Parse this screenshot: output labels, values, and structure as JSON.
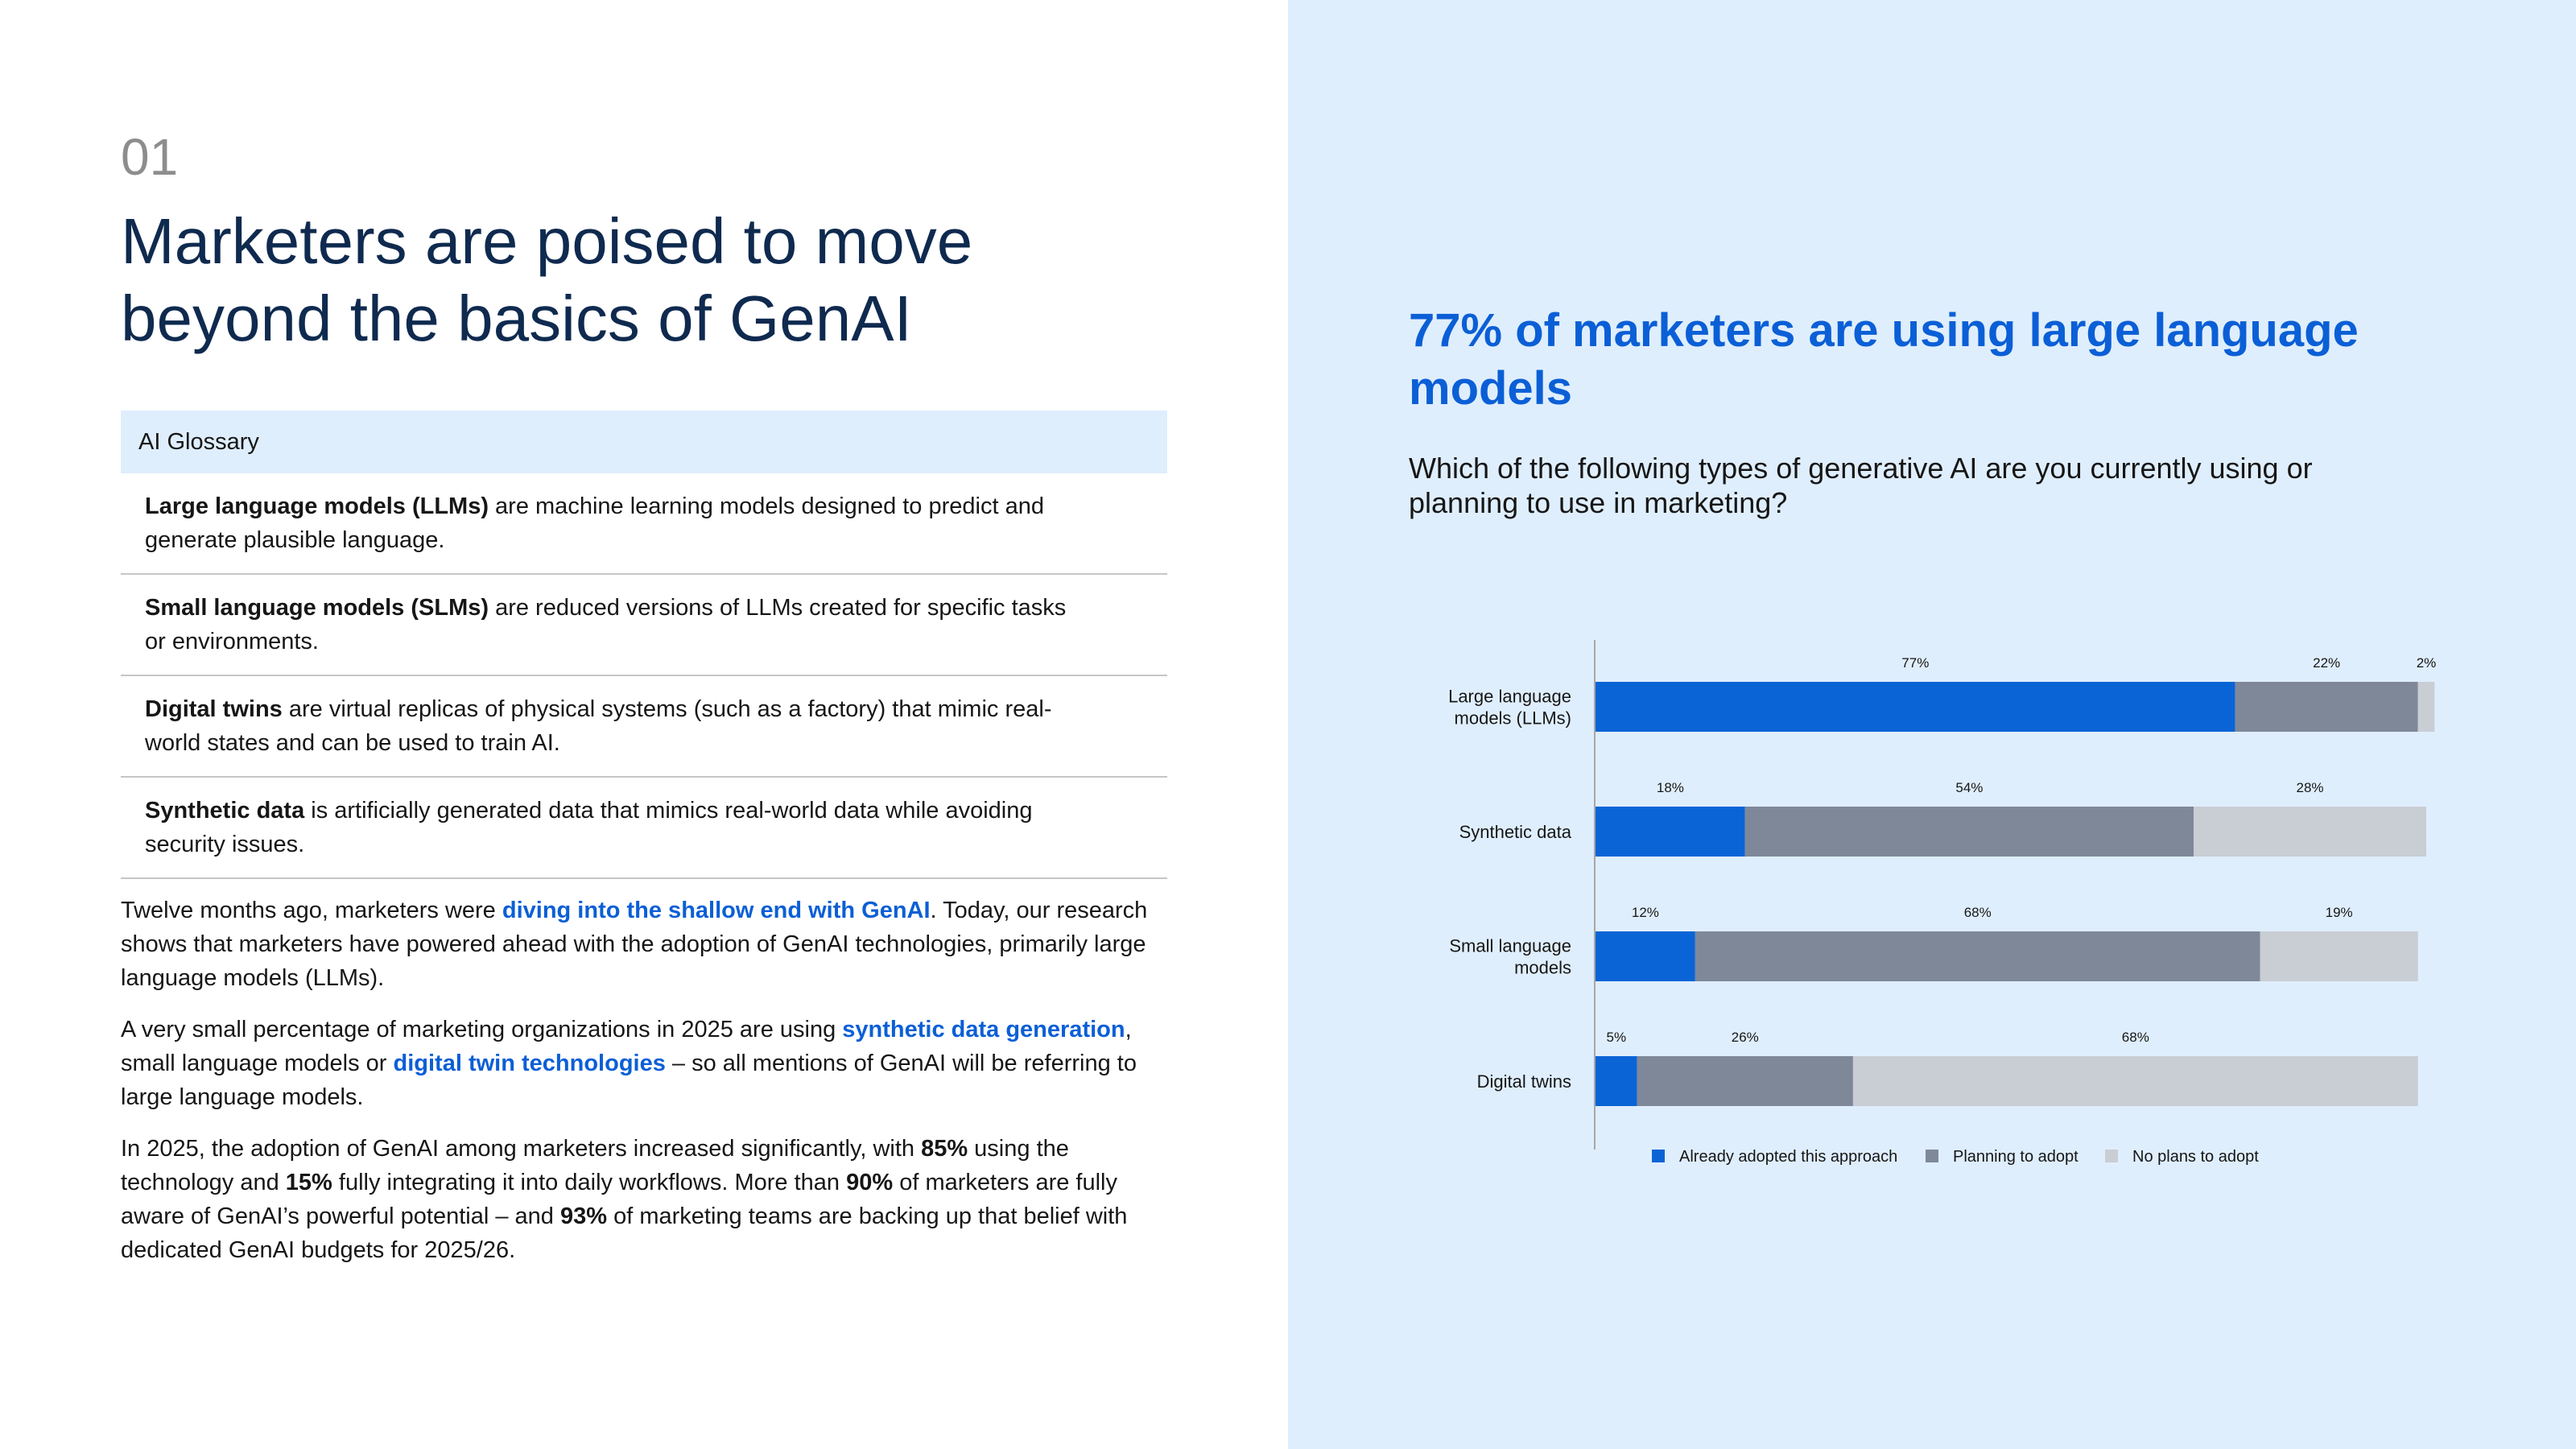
{
  "left": {
    "section_number": "01",
    "title": "Marketers are poised to move beyond the basics of GenAI",
    "glossary": {
      "heading": "AI Glossary",
      "items": [
        {
          "term": "Large language models (LLMs)",
          "definition": " are machine learning models designed to predict and generate plausible language."
        },
        {
          "term": "Small language models (SLMs)",
          "definition": " are reduced versions of LLMs created for specific tasks or environments."
        },
        {
          "term": "Digital twins",
          "definition": " are virtual replicas of physical systems (such as a factory) that mimic real-world states and can be used to train AI."
        },
        {
          "term": "Synthetic data",
          "definition": " is artificially generated data that mimics real-world data while avoiding security issues."
        }
      ]
    },
    "paragraphs": {
      "p1_a": "Twelve months ago, marketers were ",
      "p1_link": "diving into the shallow end with GenAI",
      "p1_b": ". Today, our research shows that marketers have powered ahead with the adoption of GenAI technologies, primarily large language models (LLMs).",
      "p2_a": "A very small percentage of marketing organizations in 2025 are using ",
      "p2_link1": "synthetic data generation",
      "p2_b": ", small language models or ",
      "p2_link2": "digital twin technologies",
      "p2_c": " – so all mentions of GenAI will be referring to large language models.",
      "p3_a": "In 2025, the adoption of GenAI among marketers increased significantly, with ",
      "p3_s1": "85%",
      "p3_b": " using the technology and ",
      "p3_s2": "15%",
      "p3_c": " fully integrating it into daily workflows. More than ",
      "p3_s3": "90%",
      "p3_d": " of marketers are fully aware of GenAI’s powerful potential – and ",
      "p3_s4": "93%",
      "p3_e": " of marketing teams are backing up that belief with dedicated GenAI budgets for 2025/26."
    }
  },
  "right": {
    "chart_title": "77% of marketers are using large language models",
    "question": "Which of the following types of generative AI are you currently using or planning to use in marketing?"
  },
  "chart_data": {
    "type": "bar",
    "orientation": "horizontal",
    "stacked": true,
    "categories": [
      [
        "Large language",
        "models (LLMs)"
      ],
      [
        "Synthetic data"
      ],
      [
        "Small language",
        "models"
      ],
      [
        "Digital twins"
      ]
    ],
    "series": [
      {
        "name": "Already adopted this approach",
        "values": [
          77,
          18,
          12,
          5
        ],
        "color": "#0b64d6"
      },
      {
        "name": "Planning to adopt",
        "values": [
          22,
          54,
          68,
          26
        ],
        "color": "#7f8899"
      },
      {
        "name": "No plans to adopt",
        "values": [
          2,
          28,
          19,
          68
        ],
        "color": "#c9cdd4"
      }
    ],
    "value_suffix": "%",
    "legend": "bottom",
    "grid": false
  }
}
